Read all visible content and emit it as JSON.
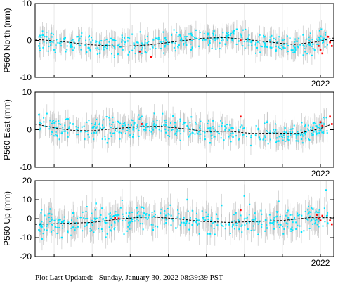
{
  "footer": {
    "prefix": "Plot Last Updated:",
    "timestamp": "Sunday, January 30, 2022 08:39:39 PST"
  },
  "colors": {
    "observations": "#00e5ff",
    "recent_observations": "#ff0000",
    "error_bars": "#c8c8c8",
    "model_curve": "#000000"
  },
  "chart_data": [
    {
      "type": "scatter",
      "ylabel": "P560 North (mm)",
      "ylim": [
        -10,
        10
      ],
      "yticks": [
        -10,
        0,
        10
      ],
      "xlim": [
        2014.5,
        2022.35
      ],
      "xtick_labels": [
        {
          "x": 2022.0,
          "label": "2022"
        }
      ],
      "grid": true,
      "model_curve": {
        "x": [
          2014.5,
          2015.2,
          2016.0,
          2016.8,
          2017.5,
          2018.2,
          2018.9,
          2019.5,
          2020.1,
          2020.7,
          2021.3,
          2021.9,
          2022.3
        ],
        "y": [
          0.3,
          -0.3,
          -1.2,
          -1.6,
          -1.2,
          -0.3,
          0.6,
          0.8,
          0.2,
          -0.5,
          -1.1,
          -0.4,
          0.6
        ]
      },
      "series": [
        {
          "role": "observations",
          "error_bar_mm": 2.5,
          "x": [
            2014.6,
            2014.8,
            2015.0,
            2015.3,
            2015.6,
            2015.9,
            2016.2,
            2016.5,
            2016.8,
            2017.1,
            2017.4,
            2017.7,
            2018.0,
            2018.3,
            2018.6,
            2018.9,
            2019.2,
            2019.5,
            2019.8,
            2020.1,
            2020.4,
            2020.7,
            2021.0,
            2021.3,
            2021.6,
            2021.8,
            2022.1
          ],
          "y": [
            -1.5,
            1.0,
            -2.5,
            -3.0,
            1.0,
            -2.0,
            -3.5,
            0.5,
            -2.5,
            -1.0,
            -3.0,
            0.5,
            -1.0,
            1.5,
            -2.5,
            0.0,
            2.5,
            -1.0,
            3.0,
            0.5,
            1.5,
            -2.0,
            0.0,
            -1.5,
            -3.0,
            -1.0,
            0.5
          ]
        },
        {
          "role": "recent_observations",
          "x": [
            2017.25,
            2017.55,
            2019.9,
            2021.95,
            2022.0,
            2022.05,
            2022.2,
            2022.25,
            2022.3
          ],
          "y": [
            -3.0,
            -4.5,
            0.0,
            -1.5,
            -2.5,
            -3.5,
            1.0,
            -0.5,
            -1.5
          ]
        }
      ]
    },
    {
      "type": "scatter",
      "ylabel": "P560 East (mm)",
      "ylim": [
        -10,
        10
      ],
      "yticks": [
        -10,
        0,
        10
      ],
      "xlim": [
        2014.5,
        2022.35
      ],
      "xtick_labels": [
        {
          "x": 2022.0,
          "label": "2022"
        }
      ],
      "grid": true,
      "model_curve": {
        "x": [
          2014.5,
          2015.0,
          2015.5,
          2016.0,
          2016.6,
          2017.2,
          2017.8,
          2018.4,
          2019.0,
          2019.6,
          2020.2,
          2020.8,
          2021.4,
          2022.0,
          2022.3
        ],
        "y": [
          1.5,
          0.5,
          -0.2,
          -0.3,
          0.3,
          0.8,
          0.9,
          0.3,
          -0.5,
          -0.4,
          -1.0,
          -0.9,
          -1.0,
          0.3,
          1.5
        ]
      },
      "series": [
        {
          "role": "observations",
          "error_bar_mm": 2.5,
          "x": [
            2014.6,
            2014.9,
            2015.2,
            2015.5,
            2015.8,
            2016.1,
            2016.4,
            2016.7,
            2017.0,
            2017.3,
            2017.6,
            2017.9,
            2018.2,
            2018.5,
            2018.8,
            2019.1,
            2019.4,
            2019.7,
            2020.0,
            2020.3,
            2020.6,
            2020.9,
            2021.2,
            2021.5,
            2021.8,
            2022.1
          ],
          "y": [
            4.0,
            2.5,
            -1.0,
            1.5,
            -2.5,
            0.5,
            -3.5,
            2.0,
            -1.5,
            3.5,
            0.0,
            2.5,
            -1.0,
            1.0,
            -0.5,
            -3.5,
            1.0,
            -2.0,
            0.5,
            -1.5,
            2.0,
            -3.0,
            -0.5,
            -2.5,
            0.5,
            1.5
          ]
        },
        {
          "role": "recent_observations",
          "x": [
            2017.3,
            2019.9,
            2022.0,
            2022.05,
            2022.25,
            2022.3
          ],
          "y": [
            1.5,
            3.5,
            2.0,
            1.0,
            3.5,
            1.5
          ]
        }
      ]
    },
    {
      "type": "scatter",
      "ylabel": "P560 Up (mm)",
      "ylim": [
        -20,
        20
      ],
      "yticks": [
        -20,
        -10,
        0,
        10,
        20
      ],
      "xlim": [
        2014.5,
        2022.35
      ],
      "xtick_labels": [
        {
          "x": 2022.0,
          "label": "2022"
        }
      ],
      "grid": true,
      "model_curve": {
        "x": [
          2014.5,
          2015.3,
          2016.0,
          2016.8,
          2017.5,
          2018.2,
          2018.9,
          2019.6,
          2020.3,
          2021.0,
          2021.7,
          2022.3
        ],
        "y": [
          -3.0,
          -2.5,
          -2.0,
          0.0,
          1.0,
          0.0,
          -1.5,
          -2.0,
          -1.5,
          -1.0,
          0.5,
          0.5
        ]
      },
      "series": [
        {
          "role": "observations",
          "error_bar_mm": 6.0,
          "x": [
            2014.6,
            2014.9,
            2015.2,
            2015.5,
            2015.8,
            2016.1,
            2016.4,
            2016.7,
            2017.0,
            2017.3,
            2017.6,
            2017.9,
            2018.2,
            2018.5,
            2018.8,
            2019.1,
            2019.4,
            2019.7,
            2020.0,
            2020.3,
            2020.6,
            2020.9,
            2021.2,
            2021.5,
            2021.8,
            2022.15
          ],
          "y": [
            -6.0,
            5.0,
            -10.0,
            3.0,
            -4.0,
            8.0,
            -8.0,
            2.0,
            -2.0,
            6.0,
            -6.0,
            4.0,
            -5.0,
            10.0,
            -1.0,
            -8.0,
            7.0,
            -3.0,
            12.0,
            0.0,
            -5.0,
            9.0,
            2.0,
            -7.0,
            5.0,
            15.0
          ]
        },
        {
          "role": "recent_observations",
          "x": [
            2016.6,
            2016.7,
            2019.9,
            2021.9,
            2021.95,
            2022.0,
            2022.05,
            2022.25,
            2022.3
          ],
          "y": [
            0.5,
            0.0,
            4.5,
            2.0,
            0.0,
            -1.0,
            1.5,
            -1.0,
            -3.0
          ]
        }
      ]
    }
  ]
}
